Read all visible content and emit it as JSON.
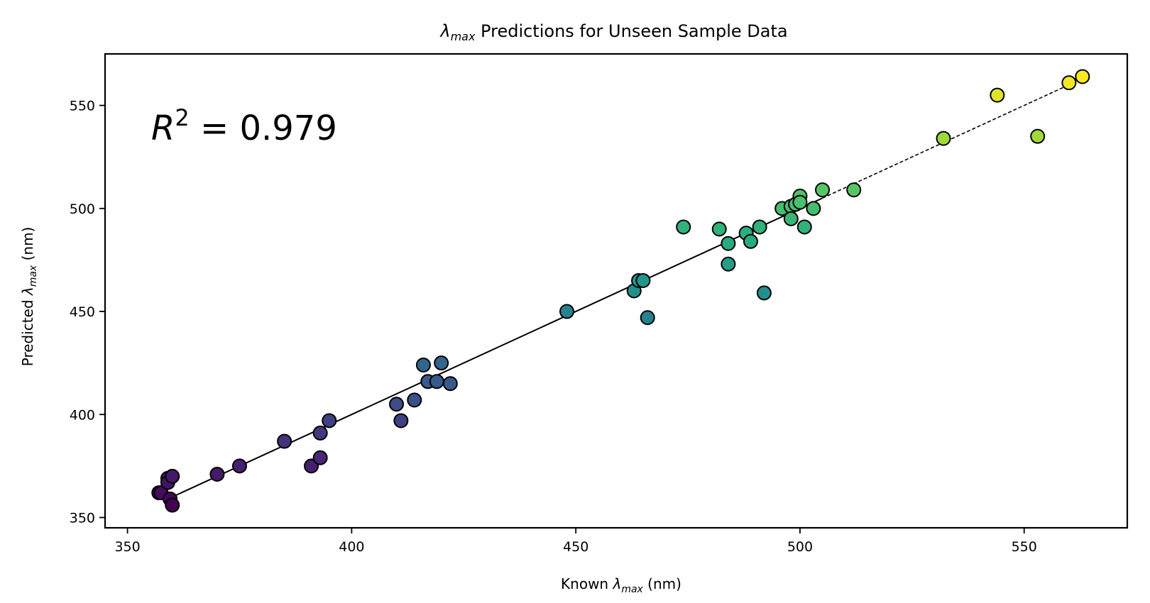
{
  "chart_data": {
    "type": "scatter",
    "title": {
      "symbol": "λ",
      "sub": "max",
      "rest": " Predictions for Unseen Sample Data"
    },
    "xlabel": {
      "pre": "Known ",
      "symbol": "λ",
      "sub": "max",
      "post": " (nm)"
    },
    "ylabel": {
      "pre": "Predicted ",
      "symbol": "λ",
      "sub": "max",
      "post": " (nm)"
    },
    "annotation": {
      "var": "R",
      "exp": "2",
      "value": " = 0.979"
    },
    "xlim": [
      345,
      573
    ],
    "ylim": [
      345,
      575
    ],
    "xticks": [
      350,
      400,
      450,
      500,
      550
    ],
    "yticks": [
      350,
      400,
      450,
      500,
      550
    ],
    "fit_line": {
      "solid": [
        [
          358,
          358
        ],
        [
          505,
          505
        ]
      ],
      "dashed": [
        [
          505,
          505
        ],
        [
          560,
          560
        ]
      ]
    },
    "colormap": "viridis",
    "marker_edge_color": "#000000",
    "points": [
      {
        "x": 357,
        "y": 362
      },
      {
        "x": 357.5,
        "y": 362
      },
      {
        "x": 359,
        "y": 369
      },
      {
        "x": 359,
        "y": 367
      },
      {
        "x": 360,
        "y": 370
      },
      {
        "x": 359.5,
        "y": 359
      },
      {
        "x": 360,
        "y": 356
      },
      {
        "x": 370,
        "y": 371
      },
      {
        "x": 375,
        "y": 375
      },
      {
        "x": 385,
        "y": 387
      },
      {
        "x": 391,
        "y": 375
      },
      {
        "x": 393,
        "y": 379
      },
      {
        "x": 393,
        "y": 391
      },
      {
        "x": 395,
        "y": 397
      },
      {
        "x": 410,
        "y": 405
      },
      {
        "x": 411,
        "y": 397
      },
      {
        "x": 414,
        "y": 407
      },
      {
        "x": 416,
        "y": 424
      },
      {
        "x": 417,
        "y": 416
      },
      {
        "x": 419,
        "y": 416
      },
      {
        "x": 420,
        "y": 425
      },
      {
        "x": 422,
        "y": 415
      },
      {
        "x": 448,
        "y": 450
      },
      {
        "x": 463,
        "y": 460
      },
      {
        "x": 464,
        "y": 465
      },
      {
        "x": 465,
        "y": 465
      },
      {
        "x": 466,
        "y": 447
      },
      {
        "x": 474,
        "y": 491
      },
      {
        "x": 482,
        "y": 490
      },
      {
        "x": 484,
        "y": 483
      },
      {
        "x": 484,
        "y": 473
      },
      {
        "x": 488,
        "y": 488
      },
      {
        "x": 489,
        "y": 484
      },
      {
        "x": 491,
        "y": 491
      },
      {
        "x": 492,
        "y": 459
      },
      {
        "x": 496,
        "y": 500
      },
      {
        "x": 498,
        "y": 501
      },
      {
        "x": 498,
        "y": 495
      },
      {
        "x": 499,
        "y": 502
      },
      {
        "x": 500,
        "y": 506
      },
      {
        "x": 500,
        "y": 503
      },
      {
        "x": 501,
        "y": 491
      },
      {
        "x": 503,
        "y": 500
      },
      {
        "x": 505,
        "y": 509
      },
      {
        "x": 512,
        "y": 509
      },
      {
        "x": 532,
        "y": 534
      },
      {
        "x": 544,
        "y": 555
      },
      {
        "x": 553,
        "y": 535
      },
      {
        "x": 560,
        "y": 561
      },
      {
        "x": 563,
        "y": 564
      }
    ]
  }
}
